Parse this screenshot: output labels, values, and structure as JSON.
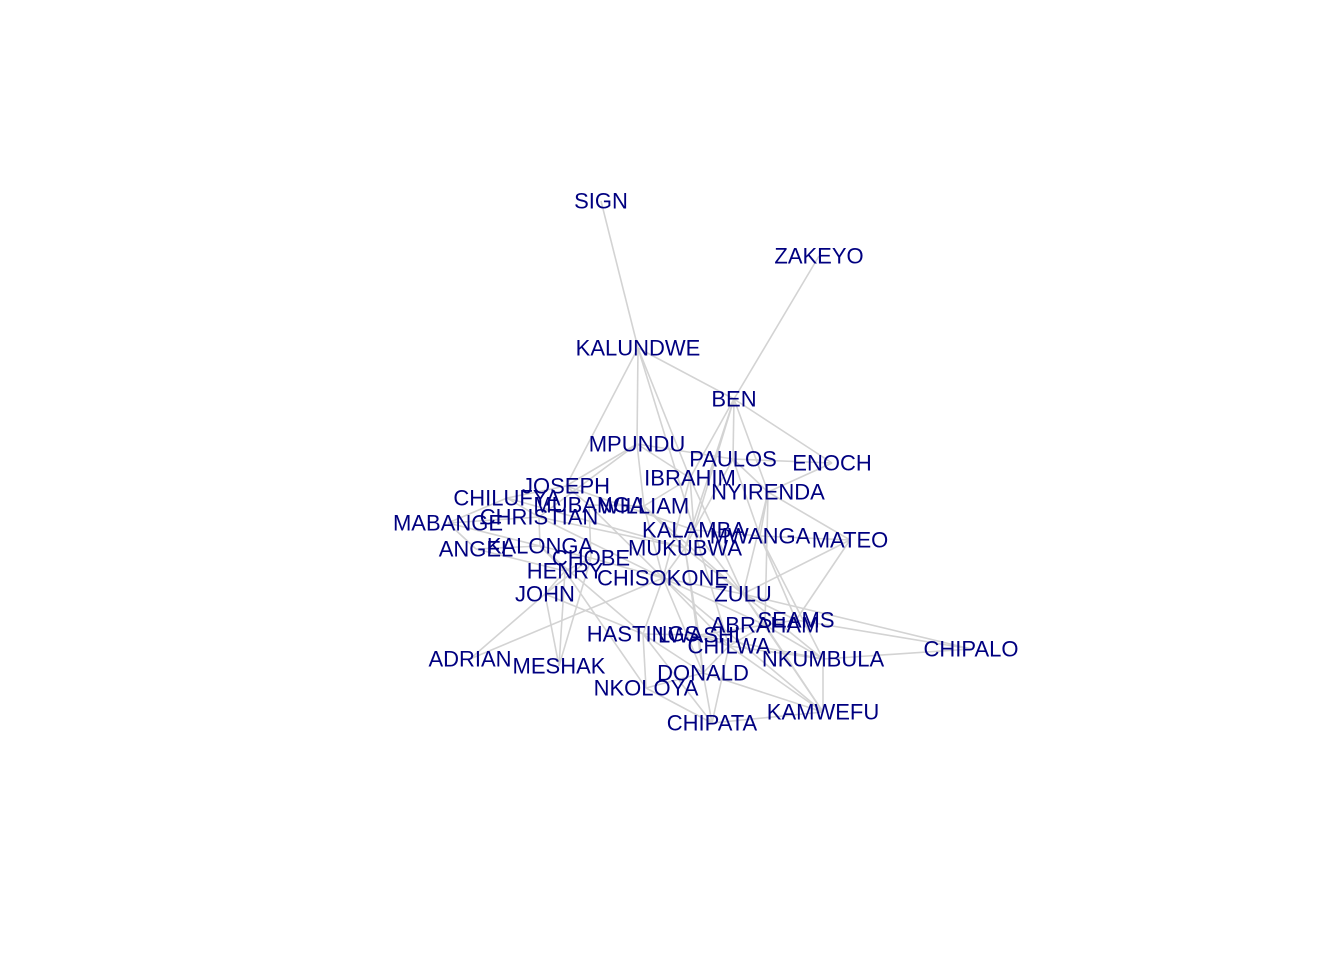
{
  "graph": {
    "colors": {
      "edge": "#d3d3d3",
      "label": "#000080",
      "background": "#ffffff"
    },
    "nodes": [
      {
        "id": "SIGN",
        "label": "SIGN"
      },
      {
        "id": "ZAKEYO",
        "label": "ZAKEYO"
      },
      {
        "id": "KALUNDWE",
        "label": "KALUNDWE"
      },
      {
        "id": "BEN",
        "label": "BEN"
      },
      {
        "id": "MPUNDU",
        "label": "MPUNDU"
      },
      {
        "id": "PAULOS",
        "label": "PAULOS"
      },
      {
        "id": "ENOCH",
        "label": "ENOCH"
      },
      {
        "id": "IBRAHIM",
        "label": "IBRAHIM"
      },
      {
        "id": "NYIRENDA",
        "label": "NYIRENDA"
      },
      {
        "id": "JOSEPH",
        "label": "JOSEPH"
      },
      {
        "id": "CHILUFYA",
        "label": "CHILUFYA"
      },
      {
        "id": "MUBANGA",
        "label": "MUBANGA"
      },
      {
        "id": "WILLIAM",
        "label": "WILLIAM"
      },
      {
        "id": "CHRISTIAN",
        "label": "CHRISTIAN"
      },
      {
        "id": "MABANGE",
        "label": "MABANGE"
      },
      {
        "id": "KALAMBA",
        "label": "KALAMBA"
      },
      {
        "id": "MWANGA",
        "label": "MWANGA"
      },
      {
        "id": "MATEO",
        "label": "MATEO"
      },
      {
        "id": "ANGEL",
        "label": "ANGEL"
      },
      {
        "id": "KALONGA",
        "label": "KALONGA"
      },
      {
        "id": "MUKUBWA",
        "label": "MUKUBWA"
      },
      {
        "id": "CHOBE",
        "label": "CHOBE"
      },
      {
        "id": "HENRY",
        "label": "HENRY"
      },
      {
        "id": "CHISOKONE",
        "label": "CHISOKONE"
      },
      {
        "id": "JOHN",
        "label": "JOHN"
      },
      {
        "id": "ZULU",
        "label": "ZULU"
      },
      {
        "id": "SEAMS",
        "label": "SEAMS"
      },
      {
        "id": "ABRAHAM",
        "label": "ABRAHAM"
      },
      {
        "id": "HASTINGS",
        "label": "HASTINGS"
      },
      {
        "id": "LWASHI",
        "label": "LWASHI"
      },
      {
        "id": "CHILWA",
        "label": "CHILWA"
      },
      {
        "id": "CHIPALO",
        "label": "CHIPALO"
      },
      {
        "id": "NKUMBULA",
        "label": "NKUMBULA"
      },
      {
        "id": "ADRIAN",
        "label": "ADRIAN"
      },
      {
        "id": "MESHAK",
        "label": "MESHAK"
      },
      {
        "id": "DONALD",
        "label": "DONALD"
      },
      {
        "id": "NKOLOYA",
        "label": "NKOLOYA"
      },
      {
        "id": "KAMWEFU",
        "label": "KAMWEFU"
      },
      {
        "id": "CHIPATA",
        "label": "CHIPATA"
      }
    ],
    "edges": [
      [
        "SIGN",
        "KALUNDWE"
      ],
      [
        "ZAKEYO",
        "BEN"
      ],
      [
        "KALUNDWE",
        "MPUNDU"
      ],
      [
        "KALUNDWE",
        "BEN"
      ],
      [
        "KALUNDWE",
        "IBRAHIM"
      ],
      [
        "KALUNDWE",
        "JOSEPH"
      ],
      [
        "KALUNDWE",
        "KALAMBA"
      ],
      [
        "BEN",
        "PAULOS"
      ],
      [
        "BEN",
        "IBRAHIM"
      ],
      [
        "BEN",
        "NYIRENDA"
      ],
      [
        "BEN",
        "ENOCH"
      ],
      [
        "BEN",
        "KALAMBA"
      ],
      [
        "BEN",
        "MUKUBWA"
      ],
      [
        "MPUNDU",
        "JOSEPH"
      ],
      [
        "MPUNDU",
        "WILLIAM"
      ],
      [
        "MPUNDU",
        "IBRAHIM"
      ],
      [
        "MPUNDU",
        "PAULOS"
      ],
      [
        "MPUNDU",
        "CHRISTIAN"
      ],
      [
        "PAULOS",
        "ENOCH"
      ],
      [
        "PAULOS",
        "NYIRENDA"
      ],
      [
        "PAULOS",
        "KALAMBA"
      ],
      [
        "PAULOS",
        "MWANGA"
      ],
      [
        "ENOCH",
        "NYIRENDA"
      ],
      [
        "IBRAHIM",
        "WILLIAM"
      ],
      [
        "IBRAHIM",
        "KALAMBA"
      ],
      [
        "IBRAHIM",
        "CHISOKONE"
      ],
      [
        "IBRAHIM",
        "ZULU"
      ],
      [
        "NYIRENDA",
        "MATEO"
      ],
      [
        "NYIRENDA",
        "MWANGA"
      ],
      [
        "NYIRENDA",
        "ZULU"
      ],
      [
        "NYIRENDA",
        "ABRAHAM"
      ],
      [
        "JOSEPH",
        "CHILUFYA"
      ],
      [
        "JOSEPH",
        "MUBANGA"
      ],
      [
        "JOSEPH",
        "KALAMBA"
      ],
      [
        "CHILUFYA",
        "CHRISTIAN"
      ],
      [
        "CHILUFYA",
        "MABANGE"
      ],
      [
        "CHILUFYA",
        "MUKUBWA"
      ],
      [
        "MUBANGA",
        "WILLIAM"
      ],
      [
        "MUBANGA",
        "CHOBE"
      ],
      [
        "MUBANGA",
        "CHISOKONE"
      ],
      [
        "WILLIAM",
        "MUKUBWA"
      ],
      [
        "WILLIAM",
        "CHISOKONE"
      ],
      [
        "WILLIAM",
        "ZULU"
      ],
      [
        "CHRISTIAN",
        "MABANGE"
      ],
      [
        "CHRISTIAN",
        "KALONGA"
      ],
      [
        "CHRISTIAN",
        "CHISOKONE"
      ],
      [
        "CHRISTIAN",
        "MUKUBWA"
      ],
      [
        "MABANGE",
        "ANGEL"
      ],
      [
        "MABANGE",
        "KALONGA"
      ],
      [
        "KALAMBA",
        "MWANGA"
      ],
      [
        "KALAMBA",
        "MUKUBWA"
      ],
      [
        "KALAMBA",
        "ZULU"
      ],
      [
        "KALAMBA",
        "CHILWA"
      ],
      [
        "MWANGA",
        "MATEO"
      ],
      [
        "MWANGA",
        "SEAMS"
      ],
      [
        "MWANGA",
        "NKUMBULA"
      ],
      [
        "MATEO",
        "ZULU"
      ],
      [
        "MATEO",
        "SEAMS"
      ],
      [
        "ANGEL",
        "KALONGA"
      ],
      [
        "ANGEL",
        "HENRY"
      ],
      [
        "KALONGA",
        "CHOBE"
      ],
      [
        "KALONGA",
        "HENRY"
      ],
      [
        "KALONGA",
        "HASTINGS"
      ],
      [
        "MUKUBWA",
        "CHISOKONE"
      ],
      [
        "MUKUBWA",
        "ZULU"
      ],
      [
        "MUKUBWA",
        "LWASHI"
      ],
      [
        "MUKUBWA",
        "DONALD"
      ],
      [
        "CHOBE",
        "HENRY"
      ],
      [
        "CHOBE",
        "CHISOKONE"
      ],
      [
        "CHOBE",
        "JOHN"
      ],
      [
        "CHOBE",
        "MESHAK"
      ],
      [
        "HENRY",
        "JOHN"
      ],
      [
        "HENRY",
        "NKOLOYA"
      ],
      [
        "CHISOKONE",
        "ZULU"
      ],
      [
        "CHISOKONE",
        "HASTINGS"
      ],
      [
        "CHISOKONE",
        "ABRAHAM"
      ],
      [
        "CHISOKONE",
        "CHILWA"
      ],
      [
        "CHISOKONE",
        "DONALD"
      ],
      [
        "CHISOKONE",
        "KAMWEFU"
      ],
      [
        "JOHN",
        "ADRIAN"
      ],
      [
        "JOHN",
        "MESHAK"
      ],
      [
        "JOHN",
        "HASTINGS"
      ],
      [
        "ZULU",
        "SEAMS"
      ],
      [
        "ZULU",
        "ABRAHAM"
      ],
      [
        "ZULU",
        "CHIPALO"
      ],
      [
        "ZULU",
        "NKUMBULA"
      ],
      [
        "ZULU",
        "KAMWEFU"
      ],
      [
        "SEAMS",
        "ABRAHAM"
      ],
      [
        "SEAMS",
        "CHIPALO"
      ],
      [
        "ABRAHAM",
        "LWASHI"
      ],
      [
        "ABRAHAM",
        "CHILWA"
      ],
      [
        "ABRAHAM",
        "NKUMBULA"
      ],
      [
        "ABRAHAM",
        "KAMWEFU"
      ],
      [
        "HASTINGS",
        "LWASHI"
      ],
      [
        "HASTINGS",
        "NKOLOYA"
      ],
      [
        "HASTINGS",
        "DONALD"
      ],
      [
        "HASTINGS",
        "CHIPATA"
      ],
      [
        "LWASHI",
        "CHILWA"
      ],
      [
        "LWASHI",
        "DONALD"
      ],
      [
        "LWASHI",
        "NKUMBULA"
      ],
      [
        "CHILWA",
        "NKUMBULA"
      ],
      [
        "CHILWA",
        "DONALD"
      ],
      [
        "CHILWA",
        "CHIPATA"
      ],
      [
        "CHILWA",
        "KAMWEFU"
      ],
      [
        "NKUMBULA",
        "KAMWEFU"
      ],
      [
        "NKUMBULA",
        "CHIPALO"
      ],
      [
        "DONALD",
        "NKOLOYA"
      ],
      [
        "DONALD",
        "CHIPATA"
      ],
      [
        "DONALD",
        "KAMWEFU"
      ],
      [
        "NKOLOYA",
        "CHIPATA"
      ],
      [
        "CHIPATA",
        "KAMWEFU"
      ],
      [
        "ADRIAN",
        "CHISOKONE"
      ],
      [
        "MESHAK",
        "HENRY"
      ]
    ]
  }
}
